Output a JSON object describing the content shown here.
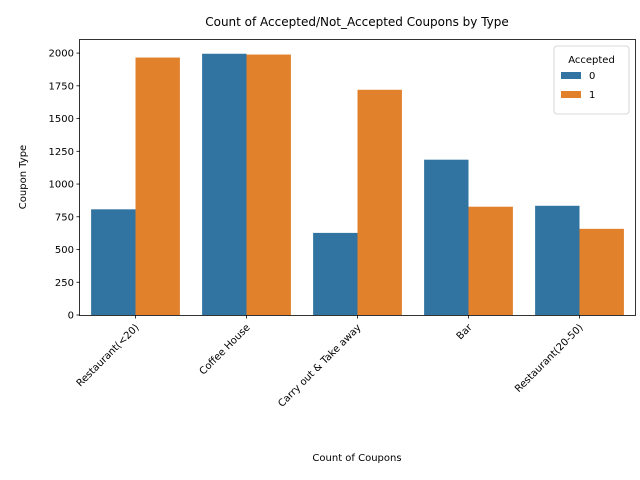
{
  "chart_data": {
    "type": "bar",
    "title": "Count of Accepted/Not_Accepted Coupons by Type",
    "xlabel": "Count of Coupons",
    "ylabel": "Coupon Type",
    "categories": [
      "Restaurant(<20)",
      "Coffee House",
      "Carry out & Take away",
      "Bar",
      "Restaurant(20-50)"
    ],
    "series": [
      {
        "name": "0",
        "color": "#3274a1",
        "values": [
          807,
          1995,
          627,
          1186,
          834
        ]
      },
      {
        "name": "1",
        "color": "#e1812c",
        "values": [
          1966,
          1989,
          1720,
          827,
          658
        ]
      }
    ],
    "ylim": [
      0,
      2100
    ],
    "yticks": [
      0,
      250,
      500,
      750,
      1000,
      1250,
      1500,
      1750,
      2000
    ],
    "grid": false,
    "legend": {
      "title": "Accepted",
      "placement": "top-right"
    }
  }
}
